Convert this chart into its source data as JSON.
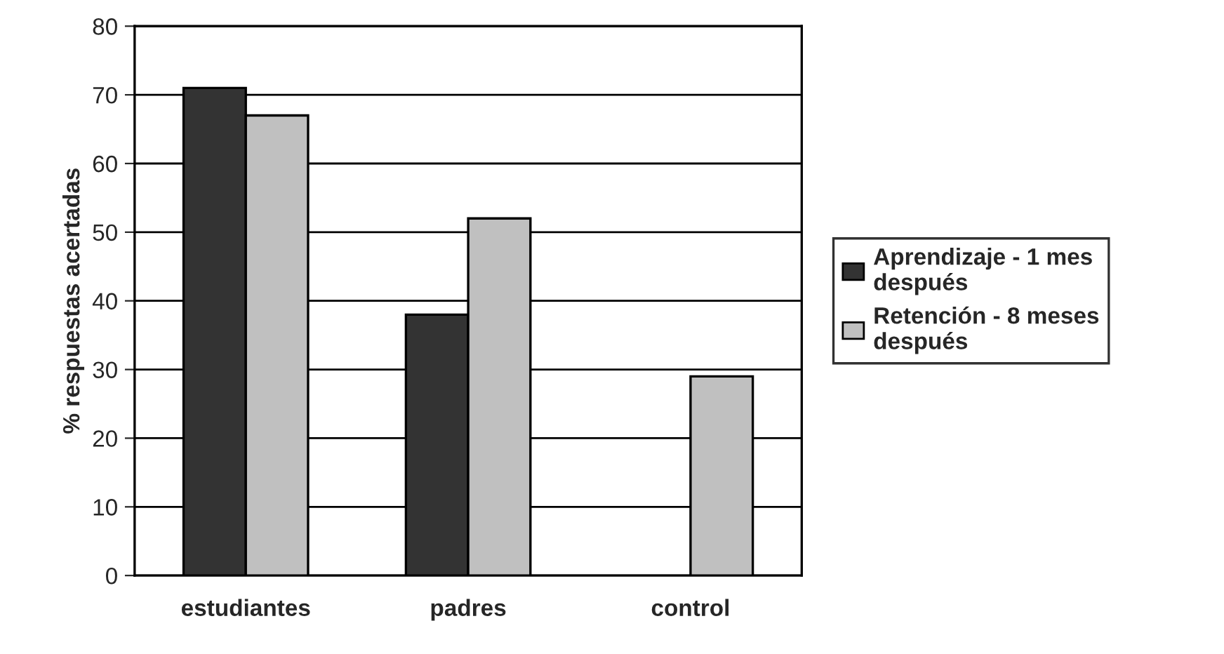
{
  "chart_data": {
    "type": "bar",
    "ylabel": "% respuestas acertadas",
    "categories": [
      "estudiantes",
      "padres",
      "control"
    ],
    "series": [
      {
        "name": "Aprendizaje - 1 mes\ndespués",
        "color": "#333333",
        "values": [
          71,
          38,
          null
        ]
      },
      {
        "name": "Retención - 8 meses\ndespués",
        "color": "#c0c0c0",
        "values": [
          67,
          52,
          29
        ]
      }
    ],
    "ylim": [
      0,
      80
    ],
    "yticks": [
      0,
      10,
      20,
      30,
      40,
      50,
      60,
      70,
      80
    ],
    "grid": "y",
    "legend": "right"
  }
}
